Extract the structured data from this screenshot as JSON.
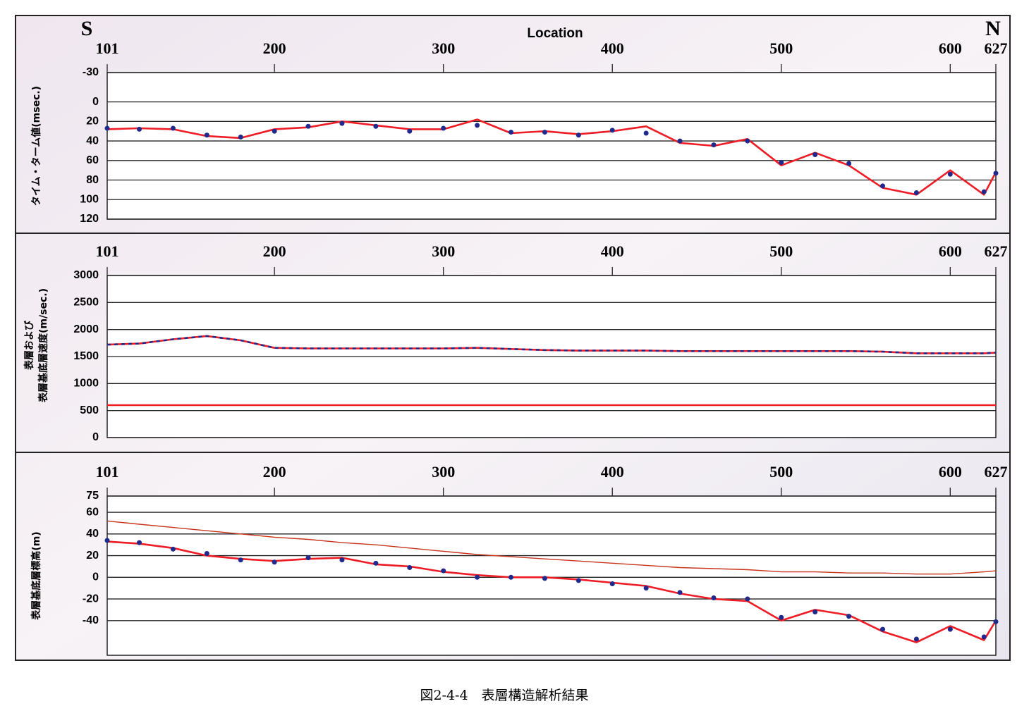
{
  "caption": "図2-4-4　表層構造解析結果",
  "chart_data": [
    {
      "type": "line",
      "xlabel": "Location",
      "annotations": [
        "S",
        "N"
      ],
      "ylabel": [
        "タイム・ターム値(msec.)"
      ],
      "x": [
        101,
        120,
        140,
        160,
        180,
        200,
        220,
        240,
        260,
        280,
        300,
        320,
        340,
        360,
        380,
        400,
        420,
        440,
        460,
        480,
        500,
        520,
        540,
        560,
        580,
        600,
        620,
        627
      ],
      "xlim": [
        101,
        627
      ],
      "xticks": [
        101,
        200,
        300,
        400,
        500,
        600,
        627
      ],
      "ylim": [
        120,
        -30
      ],
      "yticks": [
        -30,
        0,
        20,
        40,
        60,
        80,
        100,
        120
      ],
      "grid": true,
      "series": [
        {
          "color": "#ee1c25",
          "style": "line",
          "values": [
            28,
            27,
            28,
            35,
            37,
            28,
            26,
            20,
            24,
            28,
            28,
            18,
            32,
            30,
            33,
            30,
            25,
            42,
            45,
            38,
            65,
            52,
            65,
            88,
            95,
            70,
            95,
            72
          ]
        },
        {
          "color": "#1f2a8c",
          "style": "dots",
          "values": [
            27,
            28,
            27,
            34,
            36,
            30,
            25,
            22,
            25,
            30,
            27,
            24,
            31,
            31,
            34,
            29,
            32,
            40,
            44,
            40,
            62,
            54,
            63,
            86,
            93,
            74,
            92,
            73
          ]
        }
      ]
    },
    {
      "type": "line",
      "ylabel": [
        "表層および",
        "表層基底層速度(m/sec.)"
      ],
      "x": [
        101,
        120,
        140,
        160,
        180,
        200,
        220,
        240,
        260,
        280,
        300,
        320,
        340,
        360,
        380,
        400,
        420,
        440,
        460,
        480,
        500,
        520,
        540,
        560,
        580,
        600,
        620,
        627
      ],
      "xlim": [
        101,
        627
      ],
      "xticks": [
        101,
        200,
        300,
        400,
        500,
        600,
        627
      ],
      "ylim": [
        0,
        3000
      ],
      "yticks": [
        0,
        500,
        1000,
        1500,
        2000,
        2500,
        3000
      ],
      "grid": true,
      "series": [
        {
          "color": "#ee1c25",
          "style": "line",
          "values": [
            1720,
            1740,
            1820,
            1880,
            1800,
            1660,
            1650,
            1650,
            1650,
            1650,
            1650,
            1660,
            1640,
            1620,
            1610,
            1610,
            1610,
            1600,
            1600,
            1600,
            1600,
            1600,
            1600,
            1590,
            1560,
            1560,
            1560,
            1570
          ]
        },
        {
          "color": "#1f2a8c",
          "style": "dashed",
          "values": [
            1720,
            1740,
            1820,
            1880,
            1800,
            1660,
            1650,
            1650,
            1650,
            1650,
            1650,
            1660,
            1640,
            1620,
            1610,
            1610,
            1610,
            1600,
            1600,
            1600,
            1600,
            1600,
            1600,
            1590,
            1560,
            1560,
            1560,
            1570
          ]
        },
        {
          "color": "#ee1c25",
          "style": "line",
          "values": [
            600,
            600,
            600,
            600,
            600,
            600,
            600,
            600,
            600,
            600,
            600,
            600,
            600,
            600,
            600,
            600,
            600,
            600,
            600,
            600,
            600,
            600,
            600,
            600,
            600,
            600,
            600,
            600
          ]
        }
      ]
    },
    {
      "type": "line",
      "ylabel": [
        "表層基底層標高(m)"
      ],
      "x": [
        101,
        120,
        140,
        160,
        180,
        200,
        220,
        240,
        260,
        280,
        300,
        320,
        340,
        360,
        380,
        400,
        420,
        440,
        460,
        480,
        500,
        520,
        540,
        560,
        580,
        600,
        620,
        627
      ],
      "xlim": [
        101,
        627
      ],
      "xticks": [
        101,
        200,
        300,
        400,
        500,
        600,
        627
      ],
      "ylim": [
        -72,
        75
      ],
      "yticks": [
        -40,
        -20,
        0,
        20,
        40,
        60,
        75
      ],
      "grid": true,
      "series": [
        {
          "color": "#c8341c",
          "style": "thin",
          "values": [
            52,
            49,
            46,
            43,
            40,
            37,
            35,
            32,
            30,
            27,
            24,
            21,
            19,
            17,
            15,
            13,
            11,
            9,
            8,
            7,
            5,
            5,
            4,
            4,
            3,
            3,
            5,
            6
          ]
        },
        {
          "color": "#ee1c25",
          "style": "line",
          "values": [
            33,
            31,
            27,
            20,
            17,
            15,
            17,
            18,
            12,
            10,
            5,
            2,
            0,
            0,
            -2,
            -5,
            -8,
            -15,
            -20,
            -22,
            -40,
            -30,
            -35,
            -50,
            -60,
            -45,
            -58,
            -40
          ]
        },
        {
          "color": "#1f2a8c",
          "style": "dots",
          "values": [
            34,
            32,
            26,
            22,
            16,
            14,
            18,
            16,
            13,
            9,
            6,
            0,
            0,
            -1,
            -3,
            -6,
            -10,
            -14,
            -19,
            -20,
            -37,
            -32,
            -36,
            -48,
            -57,
            -48,
            -55,
            -41
          ]
        }
      ]
    }
  ]
}
